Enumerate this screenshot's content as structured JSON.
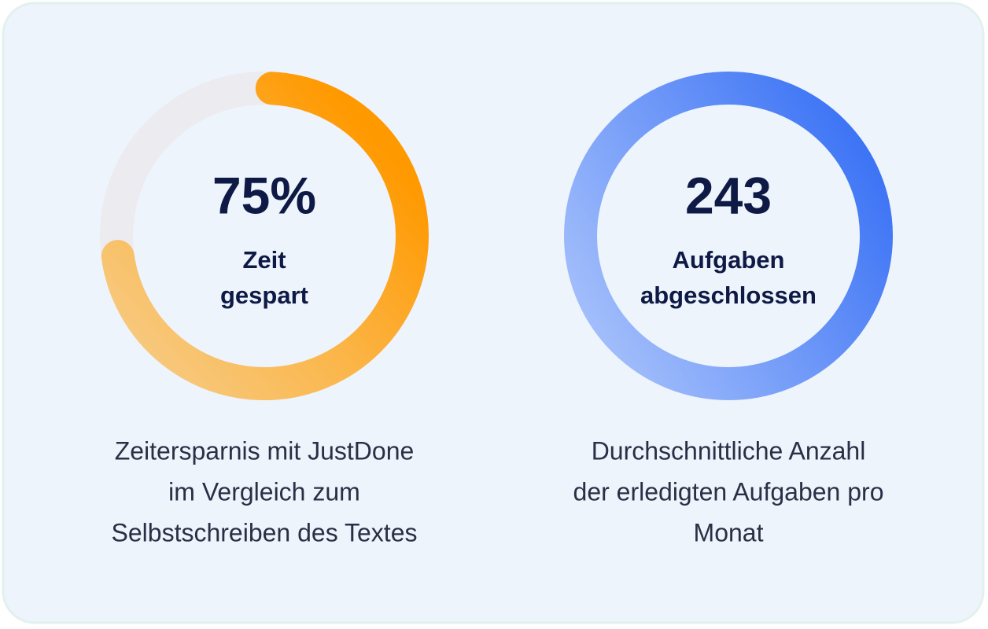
{
  "cards": [
    {
      "value": "75%",
      "label": [
        "Zeit",
        "gespart"
      ],
      "description": [
        "Zeitersparnis mit JustDone",
        "im Vergleich zum",
        "Selbstschreiben des Textes"
      ]
    },
    {
      "value": "243",
      "label": [
        "Aufgaben",
        "abgeschlossen"
      ],
      "description": [
        "Durchschnittliche Anzahl",
        "der erledigten Aufgaben pro",
        "Monat"
      ]
    }
  ]
}
